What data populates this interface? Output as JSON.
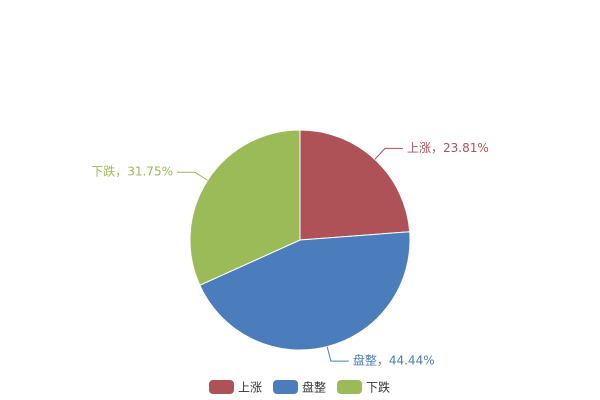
{
  "chart_data": {
    "type": "pie",
    "categories": [
      "上涨",
      "盘整",
      "下跌"
    ],
    "values": [
      23.81,
      44.44,
      31.75
    ],
    "value_labels": [
      "上涨，23.81%",
      "盘整，44.44%",
      "下跌，31.75%"
    ],
    "colors": [
      "#ae5257",
      "#4b7dbc",
      "#9bbb59"
    ],
    "legend": "bottom"
  }
}
